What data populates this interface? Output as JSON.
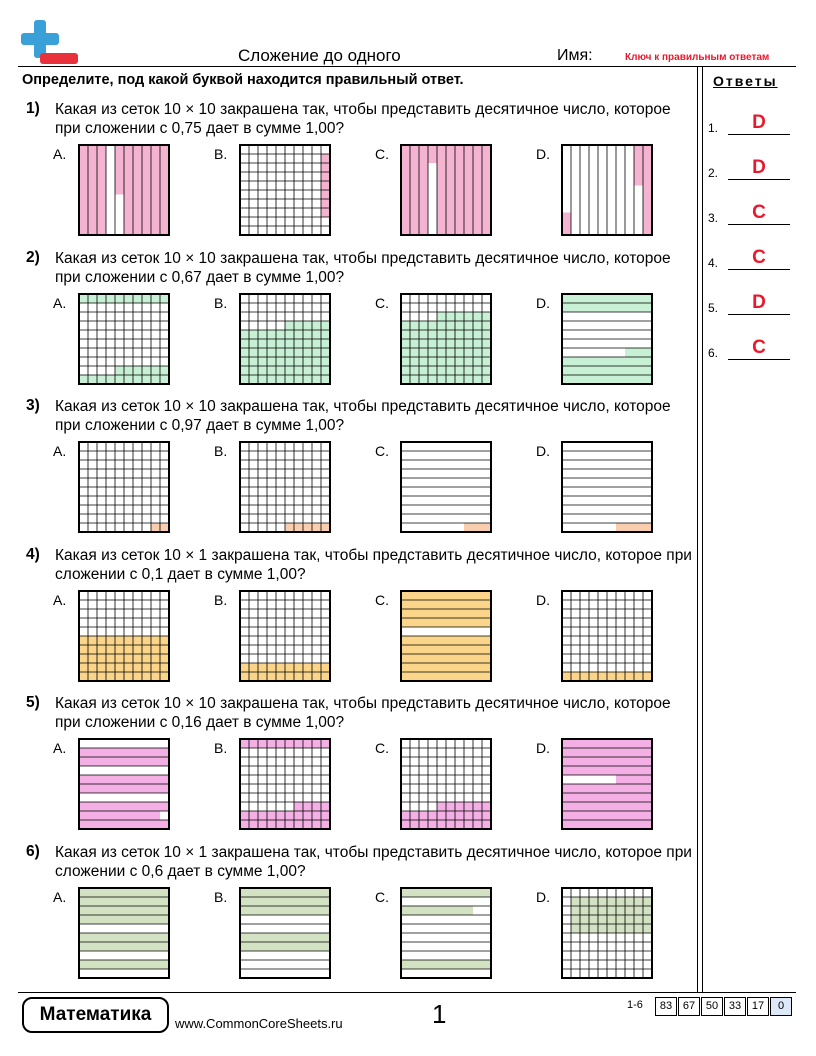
{
  "header": {
    "title": "Сложение до одного",
    "name_label": "Имя:",
    "answer_key": "Ключ к правильным ответам"
  },
  "instruction": "Определите, под какой буквой находится правильный ответ.",
  "questions": [
    {
      "number": "1)",
      "text": "Какая из сеток 10 × 10 закрашена так, чтобы представить десятичное число, которое при сложении с 0,75 дает в сумме 1,00?",
      "options": [
        "A.",
        "B.",
        "C.",
        "D."
      ]
    },
    {
      "number": "2)",
      "text": "Какая из сеток 10 × 10 закрашена так, чтобы представить десятичное число, которое при сложении с 0,67 дает в сумме 1,00?",
      "options": [
        "A.",
        "B.",
        "C.",
        "D."
      ]
    },
    {
      "number": "3)",
      "text": "Какая из сеток 10 × 10 закрашена так, чтобы представить десятичное число, которое при сложении с 0,97 дает в сумме 1,00?",
      "options": [
        "A.",
        "B.",
        "C.",
        "D."
      ]
    },
    {
      "number": "4)",
      "text": "Какая из сеток 10 × 1 закрашена так, чтобы представить десятичное число, которое при сложении с 0,1 дает в сумме 1,00?",
      "options": [
        "A.",
        "B.",
        "C.",
        "D."
      ]
    },
    {
      "number": "5)",
      "text": "Какая из сеток 10 × 10 закрашена так, чтобы представить десятичное число, которое при сложении с 0,16 дает в сумме 1,00?",
      "options": [
        "A.",
        "B.",
        "C.",
        "D."
      ]
    },
    {
      "number": "6)",
      "text": "Какая из сеток 10 × 1 закрашена так, чтобы представить десятичное число, которое при сложении с 0,6 дает в сумме 1,00?",
      "options": [
        "A.",
        "B.",
        "C.",
        "D."
      ]
    }
  ],
  "answers": {
    "title": "Ответы",
    "items": [
      {
        "number": "1.",
        "letter": "D"
      },
      {
        "number": "2.",
        "letter": "D"
      },
      {
        "number": "3.",
        "letter": "C"
      },
      {
        "number": "4.",
        "letter": "C"
      },
      {
        "number": "5.",
        "letter": "D"
      },
      {
        "number": "6.",
        "letter": "C"
      }
    ]
  },
  "footer": {
    "brand": "Математика",
    "url": "www.CommonCoreSheets.ru",
    "page": "1",
    "score_range": "1-6",
    "scores": [
      "83",
      "67",
      "50",
      "33",
      "17",
      "0"
    ]
  }
}
